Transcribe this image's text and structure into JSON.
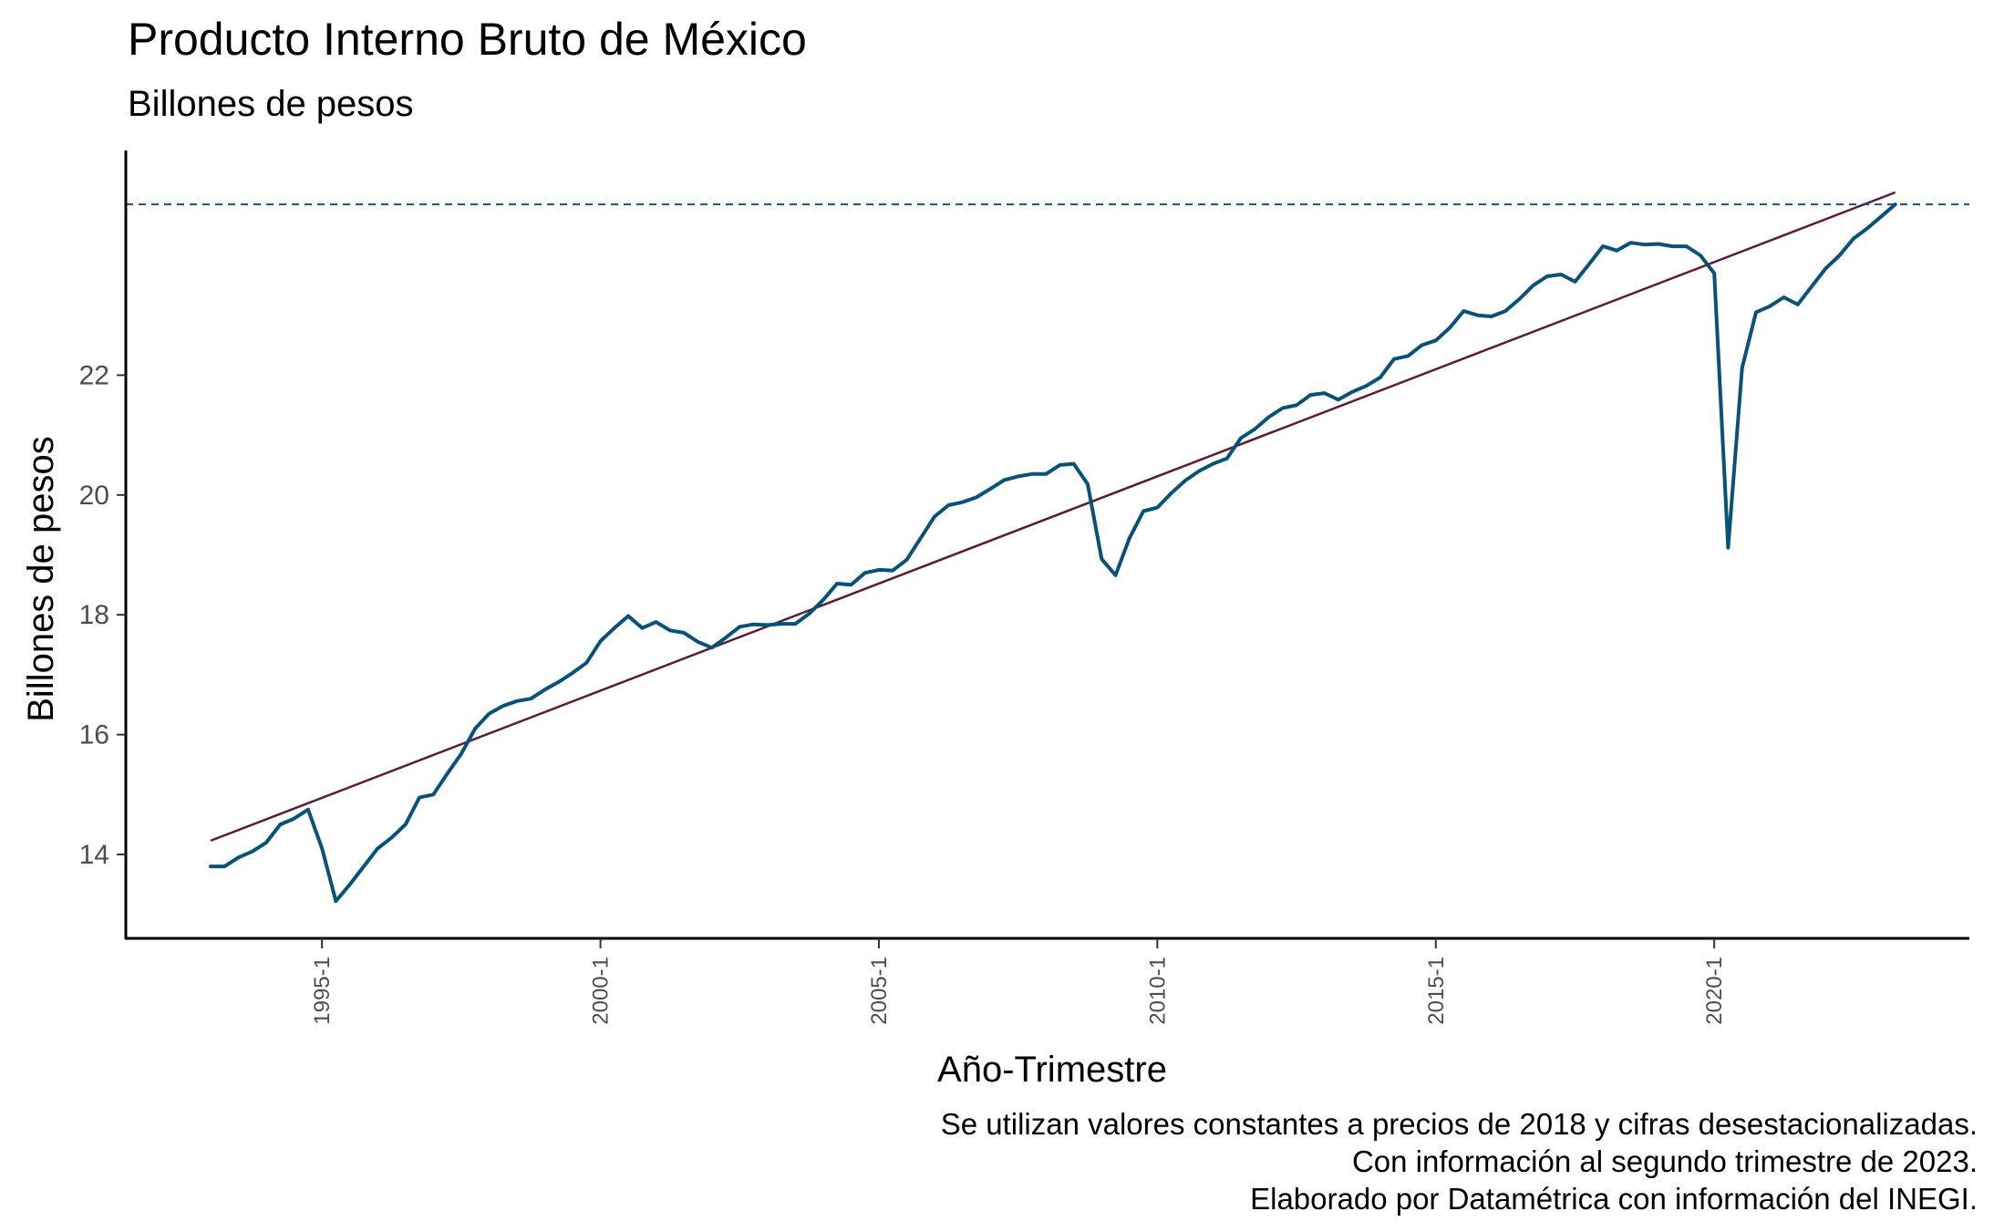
{
  "chart_data": {
    "type": "line",
    "title": "Producto Interno Bruto de México",
    "subtitle": "Billones de pesos",
    "xlabel": "Año-Trimestre",
    "ylabel": "Billones de pesos",
    "x_start": "1993-1",
    "frequency": "quarterly",
    "x_ticks": [
      "1995-1",
      "2000-1",
      "2005-1",
      "2010-1",
      "2015-1",
      "2020-1"
    ],
    "y_ticks": [
      14,
      16,
      18,
      20,
      22
    ],
    "ylim": [
      12.8,
      25.8
    ],
    "grid": false,
    "colors": {
      "series": "#08527A",
      "trend": "#5C1A33",
      "reference": "#1F4E79"
    },
    "series": [
      {
        "values": [
          13.8,
          13.8,
          13.95,
          14.05,
          14.2,
          14.5,
          14.6,
          14.75,
          14.1,
          13.22,
          13.5,
          13.8,
          14.1,
          14.28,
          14.5,
          14.95,
          15.0,
          15.35,
          15.68,
          16.1,
          16.35,
          16.48,
          16.56,
          16.6,
          16.75,
          16.88,
          17.03,
          17.2,
          17.56,
          17.78,
          17.98,
          17.78,
          17.88,
          17.74,
          17.7,
          17.55,
          17.45,
          17.62,
          17.8,
          17.84,
          17.83,
          17.85,
          17.85,
          18.02,
          18.25,
          18.52,
          18.5,
          18.7,
          18.75,
          18.74,
          18.92,
          19.28,
          19.64,
          19.83,
          19.88,
          19.96,
          20.1,
          20.25,
          20.31,
          20.35,
          20.35,
          20.5,
          20.52,
          20.18,
          18.93,
          18.66,
          19.28,
          19.73,
          19.79,
          20.03,
          20.24,
          20.4,
          20.52,
          20.61,
          20.95,
          21.1,
          21.3,
          21.45,
          21.5,
          21.67,
          21.7,
          21.59,
          21.72,
          21.82,
          21.96,
          22.27,
          22.32,
          22.5,
          22.58,
          22.79,
          23.07,
          23.0,
          22.98,
          23.07,
          23.27,
          23.5,
          23.65,
          23.68,
          23.56,
          23.85,
          24.15,
          24.08,
          24.21,
          24.18,
          24.19,
          24.15,
          24.15,
          24.0,
          23.7,
          19.12,
          22.12,
          23.05,
          23.15,
          23.3,
          23.18,
          23.48,
          23.78,
          24.0,
          24.28,
          24.45,
          24.65,
          24.85
        ]
      },
      {
        "values": [
          14.23,
          25.05
        ]
      }
    ],
    "reference_line": 24.85
  },
  "caption": {
    "line1": "Se utilizan valores constantes a precios de 2018 y cifras desestacionalizadas.",
    "line2": "Con información al segundo trimestre de 2023.",
    "line3": "Elaborado por Datamétrica con información del INEGI."
  }
}
